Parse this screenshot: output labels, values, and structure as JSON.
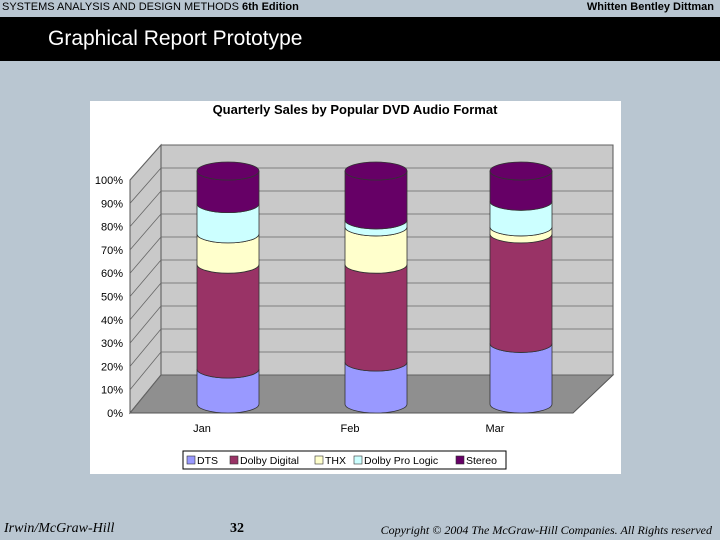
{
  "header": {
    "book_title": "SYSTEMS ANALYSIS AND DESIGN METHODS",
    "edition": "6th Edition",
    "authors": "Whitten   Bentley   Dittman"
  },
  "slide": {
    "title": "Graphical Report Prototype"
  },
  "footer": {
    "publisher": "Irwin/McGraw-Hill",
    "page_number": "32",
    "copyright": "Copyright © 2004 The McGraw-Hill Companies. All Rights reserved"
  },
  "chart_data": {
    "type": "bar",
    "stacked": true,
    "three_d": true,
    "bar_shape": "cylinder",
    "title": "Quarterly Sales by Popular DVD Audio Format",
    "xlabel": "",
    "ylabel": "",
    "categories": [
      "Jan",
      "Feb",
      "Mar"
    ],
    "ylim": [
      0,
      100
    ],
    "yticks": [
      "0%",
      "10%",
      "20%",
      "30%",
      "40%",
      "50%",
      "60%",
      "70%",
      "80%",
      "90%",
      "100%"
    ],
    "series": [
      {
        "name": "DTS",
        "values": [
          15,
          18,
          26
        ],
        "color": "#9999ff"
      },
      {
        "name": "Dolby Digital",
        "values": [
          45,
          42,
          47
        ],
        "color": "#993366"
      },
      {
        "name": "THX",
        "values": [
          13,
          16,
          3
        ],
        "color": "#ffffcc"
      },
      {
        "name": "Dolby Pro Logic",
        "values": [
          13,
          3,
          11
        ],
        "color": "#ccffff"
      },
      {
        "name": "Stereo",
        "values": [
          14,
          21,
          13
        ],
        "color": "#660066"
      }
    ],
    "grid": true,
    "legend_position": "bottom"
  }
}
